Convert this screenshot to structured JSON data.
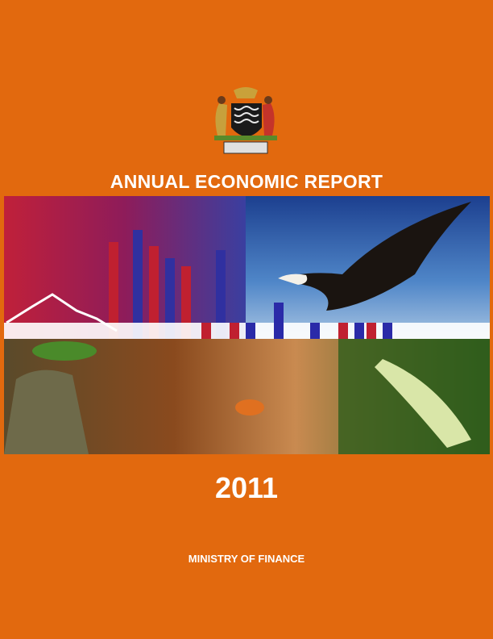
{
  "cover": {
    "title": "ANNUAL ECONOMIC REPORT",
    "year": "2011",
    "publisher": "MINISTRY OF FINANCE"
  }
}
